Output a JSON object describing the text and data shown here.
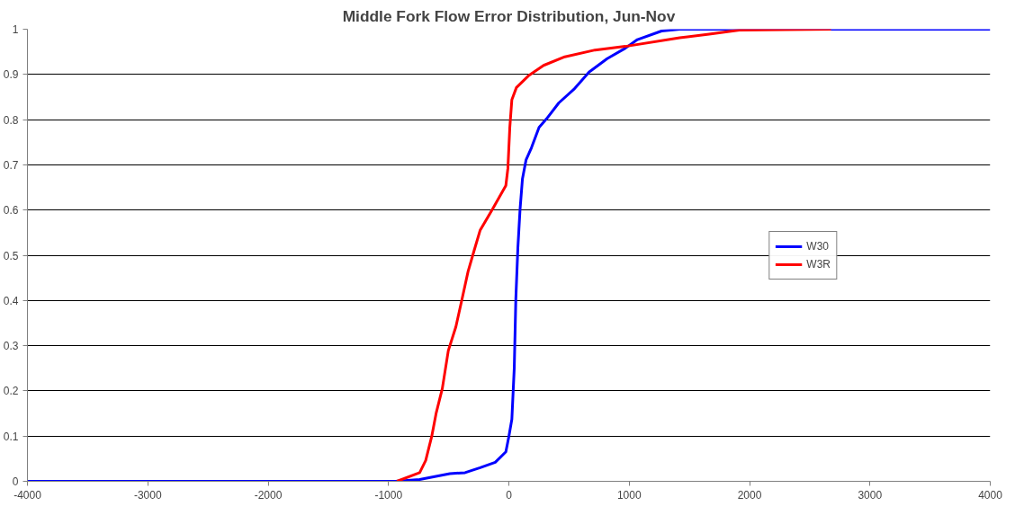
{
  "chart_data": {
    "type": "line",
    "title": "Middle Fork Flow Error Distribution, Jun-Nov",
    "xlim": [
      -4000,
      4000
    ],
    "xticks": [
      -4000,
      -3000,
      -2000,
      -1000,
      0,
      1000,
      2000,
      3000,
      4000
    ],
    "ylim": [
      0,
      1
    ],
    "yticks": [
      0,
      0.1,
      0.2,
      0.3,
      0.4,
      0.5,
      0.6,
      0.7,
      0.8,
      0.9,
      1
    ],
    "grid": "y",
    "legend": "right",
    "marker": "none",
    "line_style": "solid",
    "series": [
      {
        "name": "W30",
        "color": "#0000ff",
        "x": [
          -4000,
          -942,
          -741,
          -490,
          -364,
          -239,
          -113,
          -25,
          0,
          25,
          45,
          58,
          75,
          93,
          113,
          143,
          188,
          251,
          314,
          415,
          540,
          666,
          817,
          968,
          1068,
          1269,
          1420,
          4000
        ],
        "values": [
          0,
          0,
          0.004,
          0.017,
          0.019,
          0.03,
          0.042,
          0.065,
          0.099,
          0.137,
          0.251,
          0.403,
          0.517,
          0.601,
          0.669,
          0.711,
          0.738,
          0.783,
          0.802,
          0.837,
          0.867,
          0.905,
          0.935,
          0.958,
          0.977,
          0.996,
          1,
          1
        ]
      },
      {
        "name": "W3R",
        "color": "#ff0000",
        "x": [
          -930,
          -741,
          -691,
          -641,
          -603,
          -553,
          -503,
          -440,
          -389,
          -339,
          -289,
          -239,
          -138,
          -25,
          -8,
          8,
          25,
          63,
          163,
          289,
          465,
          716,
          968,
          1420,
          1664,
          1915,
          2677
        ],
        "values": [
          0,
          0.019,
          0.046,
          0.099,
          0.152,
          0.205,
          0.289,
          0.342,
          0.403,
          0.464,
          0.51,
          0.555,
          0.601,
          0.654,
          0.692,
          0.783,
          0.844,
          0.871,
          0.897,
          0.92,
          0.939,
          0.954,
          0.962,
          0.981,
          0.989,
          0.998,
          1
        ]
      }
    ]
  }
}
